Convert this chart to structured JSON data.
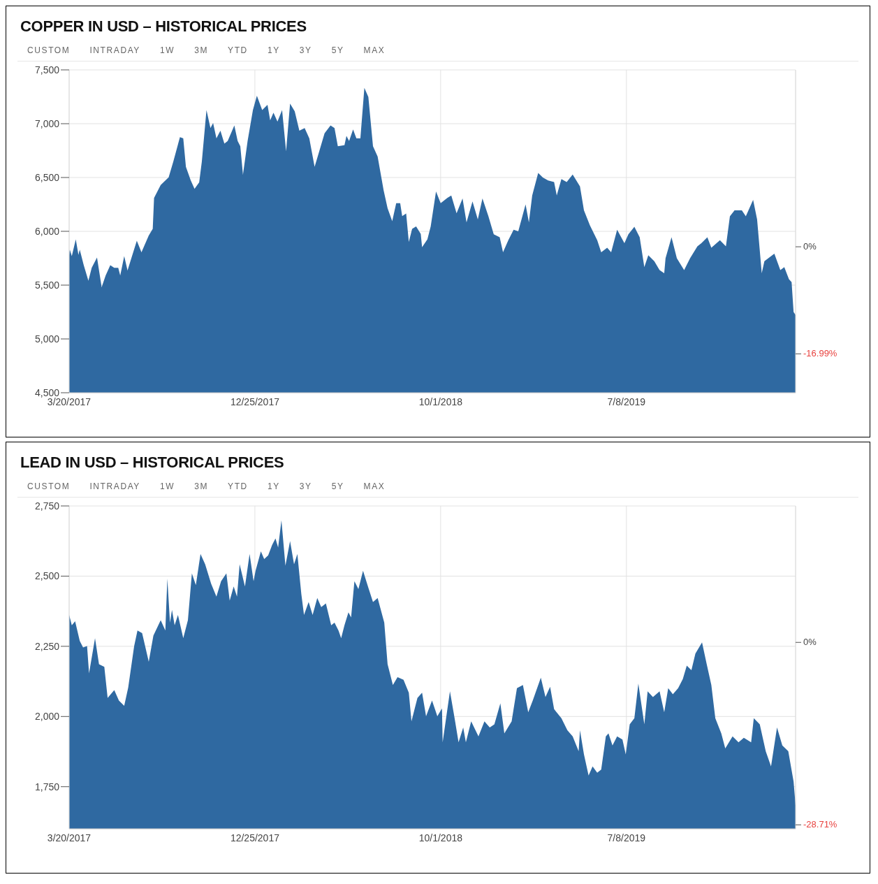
{
  "chart_data": [
    {
      "type": "area",
      "title": "COPPER IN USD – HISTORICAL PRICES",
      "annotations": [
        "CUSTOM",
        "INTRADAY",
        "1W",
        "3M",
        "YTD",
        "1Y",
        "3Y",
        "5Y",
        "MAX"
      ],
      "color": "#2f69a1",
      "grid": true,
      "xlim": [
        "2017-03-20",
        "2020-03-19"
      ],
      "xticks": [
        {
          "value": "2017-03-20",
          "label": "3/20/2017"
        },
        {
          "value": "2017-12-25",
          "label": "12/25/2017"
        },
        {
          "value": "2018-10-01",
          "label": "10/1/2018"
        },
        {
          "value": "2019-07-08",
          "label": "7/8/2019"
        }
      ],
      "ylim": [
        4500,
        7500
      ],
      "yticks": [
        {
          "value": 4500,
          "label": "4,500"
        },
        {
          "value": 5000,
          "label": "5,000"
        },
        {
          "value": 5500,
          "label": "5,500"
        },
        {
          "value": 6000,
          "label": "6,000"
        },
        {
          "value": 6500,
          "label": "6,500"
        },
        {
          "value": 7000,
          "label": "7,000"
        },
        {
          "value": 7500,
          "label": "7,500"
        }
      ],
      "y2lim": [
        -23.16,
        28.07
      ],
      "y2ticks": [
        {
          "value": 0,
          "label": "0%"
        },
        {
          "value": -16.99,
          "label": "-16.99%"
        }
      ],
      "x": [
        "2017-03-20",
        "2017-03-21",
        "2017-03-24",
        "2017-03-30",
        "2017-04-03",
        "2017-04-05",
        "2017-04-11",
        "2017-04-18",
        "2017-04-23",
        "2017-05-01",
        "2017-05-08",
        "2017-05-14",
        "2017-05-21",
        "2017-05-27",
        "2017-06-02",
        "2017-06-05",
        "2017-06-11",
        "2017-06-16",
        "2017-06-30",
        "2017-07-07",
        "2017-07-18",
        "2017-07-24",
        "2017-07-26",
        "2017-08-05",
        "2017-08-17",
        "2017-08-24",
        "2017-09-03",
        "2017-09-08",
        "2017-09-12",
        "2017-09-19",
        "2017-09-25",
        "2017-10-02",
        "2017-10-06",
        "2017-10-13",
        "2017-10-19",
        "2017-10-23",
        "2017-10-28",
        "2017-11-03",
        "2017-11-09",
        "2017-11-14",
        "2017-11-24",
        "2017-11-29",
        "2017-12-03",
        "2017-12-07",
        "2017-12-14",
        "2017-12-22",
        "2017-12-28",
        "2018-01-05",
        "2018-01-13",
        "2018-01-17",
        "2018-01-22",
        "2018-01-28",
        "2018-02-04",
        "2018-02-10",
        "2018-02-16",
        "2018-02-23",
        "2018-03-02",
        "2018-03-10",
        "2018-03-17",
        "2018-03-25",
        "2018-04-01",
        "2018-04-09",
        "2018-04-18",
        "2018-04-24",
        "2018-04-29",
        "2018-05-09",
        "2018-05-12",
        "2018-05-16",
        "2018-05-22",
        "2018-05-27",
        "2018-06-02",
        "2018-06-08",
        "2018-06-14",
        "2018-06-21",
        "2018-06-28",
        "2018-07-07",
        "2018-07-13",
        "2018-07-20",
        "2018-07-26",
        "2018-08-01",
        "2018-08-04",
        "2018-08-10",
        "2018-08-14",
        "2018-08-19",
        "2018-08-25",
        "2018-09-01",
        "2018-09-03",
        "2018-09-11",
        "2018-09-16",
        "2018-09-24",
        "2018-10-01",
        "2018-10-11",
        "2018-10-17",
        "2018-10-25",
        "2018-11-03",
        "2018-11-09",
        "2018-11-18",
        "2018-11-26",
        "2018-12-03",
        "2018-12-12",
        "2018-12-20",
        "2018-12-29",
        "2019-01-03",
        "2019-01-11",
        "2019-01-19",
        "2019-01-26",
        "2019-02-06",
        "2019-02-11",
        "2019-02-16",
        "2019-02-25",
        "2019-03-04",
        "2019-03-12",
        "2019-03-21",
        "2019-03-25",
        "2019-04-01",
        "2019-04-09",
        "2019-04-18",
        "2019-04-29",
        "2019-05-05",
        "2019-05-14",
        "2019-05-25",
        "2019-05-31",
        "2019-06-09",
        "2019-06-15",
        "2019-06-24",
        "2019-07-05",
        "2019-07-11",
        "2019-07-20",
        "2019-07-28",
        "2019-08-04",
        "2019-08-10",
        "2019-08-19",
        "2019-08-27",
        "2019-09-03",
        "2019-09-05",
        "2019-09-14",
        "2019-09-22",
        "2019-10-03",
        "2019-10-12",
        "2019-10-23",
        "2019-10-29",
        "2019-11-07",
        "2019-11-13",
        "2019-11-26",
        "2019-12-05",
        "2019-12-11",
        "2019-12-18",
        "2019-12-29",
        "2020-01-04",
        "2020-01-15",
        "2020-01-21",
        "2020-01-28",
        "2020-02-01",
        "2020-02-16",
        "2020-02-25",
        "2020-03-02",
        "2020-03-09",
        "2020-03-13",
        "2020-03-16",
        "2020-03-19"
      ],
      "values": [
        5781,
        5829,
        5769,
        5925,
        5781,
        5830,
        5685,
        5541,
        5661,
        5757,
        5481,
        5589,
        5685,
        5661,
        5661,
        5589,
        5769,
        5637,
        5913,
        5805,
        5961,
        6022,
        6310,
        6430,
        6502,
        6647,
        6875,
        6863,
        6599,
        6478,
        6394,
        6454,
        6647,
        7127,
        6959,
        7007,
        6863,
        6935,
        6815,
        6839,
        6983,
        6839,
        6791,
        6526,
        6839,
        7127,
        7260,
        7127,
        7175,
        7031,
        7103,
        7019,
        7127,
        6743,
        7187,
        7115,
        6935,
        6959,
        6863,
        6599,
        6743,
        6911,
        6983,
        6959,
        6791,
        6800,
        6887,
        6839,
        6947,
        6863,
        6863,
        7332,
        7248,
        6791,
        6695,
        6382,
        6214,
        6094,
        6262,
        6262,
        6142,
        6166,
        5901,
        6022,
        6046,
        5975,
        5853,
        5925,
        6046,
        6370,
        6262,
        6310,
        6333,
        6167,
        6306,
        6083,
        6278,
        6111,
        6306,
        6139,
        5972,
        5944,
        5806,
        5917,
        6014,
        6000,
        6250,
        6083,
        6333,
        6542,
        6500,
        6472,
        6458,
        6333,
        6486,
        6458,
        6528,
        6417,
        6194,
        6056,
        5917,
        5806,
        5847,
        5806,
        6014,
        5889,
        5972,
        6042,
        5944,
        5667,
        5778,
        5722,
        5639,
        5611,
        5750,
        5944,
        5750,
        5639,
        5750,
        5861,
        5889,
        5944,
        5847,
        5917,
        5861,
        6139,
        6194,
        6194,
        6139,
        6292,
        6111,
        5611,
        5722,
        5792,
        5639,
        5667,
        5556,
        5528,
        5250,
        5222
      ]
    },
    {
      "type": "area",
      "title": "LEAD IN USD – HISTORICAL PRICES",
      "annotations": [
        "CUSTOM",
        "INTRADAY",
        "1W",
        "3M",
        "YTD",
        "1Y",
        "3Y",
        "5Y",
        "MAX"
      ],
      "color": "#2f69a1",
      "grid": true,
      "xlim": [
        "2017-03-20",
        "2020-03-19"
      ],
      "xticks": [
        {
          "value": "2017-03-20",
          "label": "3/20/2017"
        },
        {
          "value": "2017-12-25",
          "label": "12/25/2017"
        },
        {
          "value": "2018-10-01",
          "label": "10/1/2018"
        },
        {
          "value": "2019-07-08",
          "label": "7/8/2019"
        }
      ],
      "ylim": [
        1600,
        2750
      ],
      "yticks": [
        {
          "value": 1750,
          "label": "1,750"
        },
        {
          "value": 2000,
          "label": "2,000"
        },
        {
          "value": 2250,
          "label": "2,250"
        },
        {
          "value": 2500,
          "label": "2,500"
        },
        {
          "value": 2750,
          "label": "2,750"
        }
      ],
      "y2lim": [
        -29.33,
        21.47
      ],
      "y2ticks": [
        {
          "value": 0,
          "label": "0%"
        },
        {
          "value": -28.71,
          "label": "-28.71%"
        }
      ],
      "x": [
        "2017-03-20",
        "2017-03-24",
        "2017-03-29",
        "2017-04-05",
        "2017-04-10",
        "2017-04-16",
        "2017-04-19",
        "2017-04-28",
        "2017-05-04",
        "2017-05-12",
        "2017-05-17",
        "2017-05-27",
        "2017-06-03",
        "2017-06-11",
        "2017-06-17",
        "2017-06-26",
        "2017-07-01",
        "2017-07-08",
        "2017-07-18",
        "2017-07-25",
        "2017-08-05",
        "2017-08-12",
        "2017-08-15",
        "2017-08-19",
        "2017-08-22",
        "2017-08-26",
        "2017-08-31",
        "2017-09-08",
        "2017-09-15",
        "2017-09-21",
        "2017-09-27",
        "2017-10-04",
        "2017-10-11",
        "2017-10-20",
        "2017-10-28",
        "2017-11-04",
        "2017-11-12",
        "2017-11-17",
        "2017-11-23",
        "2017-11-28",
        "2017-12-02",
        "2017-12-10",
        "2017-12-17",
        "2017-12-23",
        "2017-12-26",
        "2018-01-03",
        "2018-01-08",
        "2018-01-14",
        "2018-01-20",
        "2018-01-25",
        "2018-01-29",
        "2018-02-03",
        "2018-02-09",
        "2018-02-16",
        "2018-02-22",
        "2018-02-27",
        "2018-03-05",
        "2018-03-09",
        "2018-03-16",
        "2018-03-22",
        "2018-03-29",
        "2018-04-04",
        "2018-04-11",
        "2018-04-19",
        "2018-04-24",
        "2018-04-30",
        "2018-05-04",
        "2018-05-09",
        "2018-05-15",
        "2018-05-19",
        "2018-05-24",
        "2018-05-30",
        "2018-06-06",
        "2018-06-14",
        "2018-06-21",
        "2018-06-28",
        "2018-07-08",
        "2018-07-13",
        "2018-07-21",
        "2018-07-28",
        "2018-08-06",
        "2018-08-14",
        "2018-08-18",
        "2018-08-27",
        "2018-09-03",
        "2018-09-09",
        "2018-09-18",
        "2018-09-26",
        "2018-10-03",
        "2018-10-04",
        "2018-10-15",
        "2018-10-22",
        "2018-10-28",
        "2018-11-04",
        "2018-11-08",
        "2018-11-16",
        "2018-11-27",
        "2018-12-06",
        "2018-12-14",
        "2018-12-21",
        "2018-12-30",
        "2019-01-05",
        "2019-01-16",
        "2019-01-24",
        "2019-02-02",
        "2019-02-10",
        "2019-02-17",
        "2019-03-01",
        "2019-03-08",
        "2019-03-15",
        "2019-03-21",
        "2019-04-01",
        "2019-04-10",
        "2019-04-18",
        "2019-04-27",
        "2019-04-29",
        "2019-05-05",
        "2019-05-12",
        "2019-05-18",
        "2019-05-25",
        "2019-05-31",
        "2019-06-07",
        "2019-06-11",
        "2019-06-17",
        "2019-06-24",
        "2019-07-02",
        "2019-07-07",
        "2019-07-13",
        "2019-07-20",
        "2019-07-26",
        "2019-08-04",
        "2019-08-09",
        "2019-08-17",
        "2019-08-27",
        "2019-09-03",
        "2019-09-09",
        "2019-09-16",
        "2019-09-24",
        "2019-10-01",
        "2019-10-07",
        "2019-10-14",
        "2019-10-20",
        "2019-10-30",
        "2019-11-06",
        "2019-11-13",
        "2019-11-19",
        "2019-11-28",
        "2019-12-04",
        "2019-12-15",
        "2019-12-24",
        "2020-01-01",
        "2020-01-12",
        "2020-01-16",
        "2020-01-25",
        "2020-02-03",
        "2020-02-11",
        "2020-02-20",
        "2020-02-28",
        "2020-03-08",
        "2020-03-12",
        "2020-03-16",
        "2020-03-19"
      ],
      "values": [
        2362,
        2325,
        2339,
        2269,
        2246,
        2251,
        2154,
        2279,
        2186,
        2177,
        2066,
        2094,
        2057,
        2038,
        2103,
        2251,
        2306,
        2297,
        2195,
        2288,
        2343,
        2306,
        2491,
        2334,
        2380,
        2325,
        2362,
        2279,
        2343,
        2510,
        2468,
        2579,
        2542,
        2473,
        2427,
        2482,
        2510,
        2413,
        2463,
        2427,
        2542,
        2463,
        2579,
        2482,
        2519,
        2588,
        2561,
        2574,
        2611,
        2634,
        2602,
        2699,
        2537,
        2625,
        2542,
        2579,
        2436,
        2362,
        2408,
        2362,
        2422,
        2390,
        2403,
        2325,
        2334,
        2306,
        2279,
        2325,
        2371,
        2353,
        2482,
        2454,
        2519,
        2459,
        2408,
        2422,
        2334,
        2186,
        2112,
        2140,
        2131,
        2085,
        1983,
        2066,
        2085,
        2001,
        2057,
        2001,
        2029,
        1908,
        2090,
        1994,
        1908,
        1961,
        1908,
        1983,
        1929,
        1983,
        1961,
        1972,
        2047,
        1940,
        1983,
        2101,
        2112,
        2015,
        2058,
        2138,
        2069,
        2106,
        2026,
        1994,
        1951,
        1929,
        1876,
        1951,
        1865,
        1790,
        1822,
        1800,
        1811,
        1929,
        1940,
        1897,
        1929,
        1918,
        1865,
        1972,
        1994,
        2117,
        1972,
        2090,
        2069,
        2090,
        2015,
        2101,
        2079,
        2101,
        2133,
        2181,
        2165,
        2224,
        2264,
        2187,
        2112,
        1994,
        1940,
        1886,
        1929,
        1908,
        1924,
        1908,
        1994,
        1972,
        1876,
        1822,
        1961,
        1897,
        1876,
        1822,
        1768,
        1683
      ]
    }
  ]
}
